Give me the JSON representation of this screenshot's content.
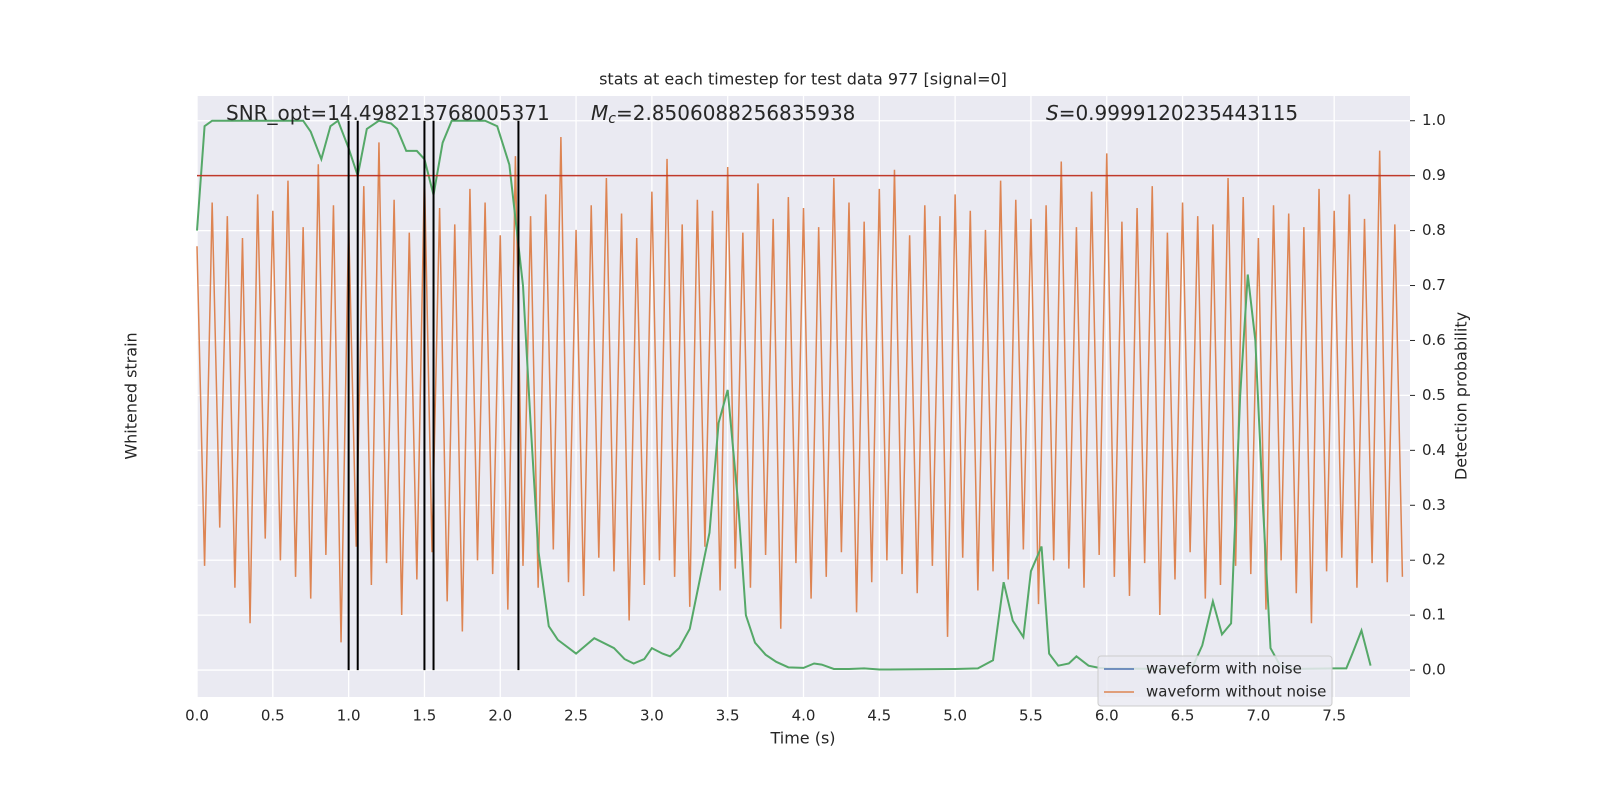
{
  "chart_data": {
    "type": "line",
    "title": "stats at each timestep for test data 977 [signal=0]",
    "xlabel": "Time (s)",
    "ylabel": "Whitened strain",
    "y2label": "Detection probability",
    "annotations": [
      {
        "parts": [
          "SNR_opt=14.498213768005371"
        ]
      },
      {
        "parts": [
          "M",
          "c",
          "=2.8506088256835938"
        ]
      },
      {
        "parts": [
          "S",
          "=0.9999120235443115"
        ]
      }
    ],
    "xlim": [
      0,
      8
    ],
    "xticks": [
      {
        "value": 0,
        "label": "0.0"
      },
      0.5,
      {
        "value": 1,
        "label": "1.0"
      },
      1.5,
      {
        "value": 2,
        "label": "2.0"
      },
      2.5,
      {
        "value": 3,
        "label": "3.0"
      },
      3.5,
      {
        "value": 4,
        "label": "4.0"
      },
      4.5,
      {
        "value": 5,
        "label": "5.0"
      },
      5.5,
      {
        "value": 6,
        "label": "6.0"
      },
      6.5,
      {
        "value": 7,
        "label": "7.0"
      },
      7.5
    ],
    "ylim": [
      -1.1,
      1.1
    ],
    "y2lim": [
      -0.049,
      1.045
    ],
    "y2ticks": [
      {
        "value": 0,
        "label": "0.0"
      },
      0.1,
      0.2,
      0.3,
      0.4,
      0.5,
      0.6,
      0.7,
      0.8,
      0.9,
      {
        "value": 1,
        "label": "1.0"
      }
    ],
    "grid": true,
    "legend": "lower right",
    "threshold": {
      "value": 0.9,
      "color": "#c0392b",
      "axis": "y2"
    },
    "vlines": {
      "x": [
        1.0,
        1.06,
        1.5,
        1.56,
        2.12
      ],
      "color": "#000000",
      "range": [
        0,
        1
      ],
      "axis": "y2"
    },
    "series": [
      {
        "name": "waveform with noise",
        "color": "#4c72b0"
      },
      {
        "name": "waveform without noise",
        "color": "#dd8452",
        "x": [
          0,
          0.05,
          0.1,
          0.15,
          0.2,
          0.25,
          0.3,
          0.35,
          0.4,
          0.45,
          0.5,
          0.55,
          0.6,
          0.65,
          0.7,
          0.75,
          0.8,
          0.85,
          0.9,
          0.95,
          1,
          1.05,
          1.1,
          1.15,
          1.2,
          1.25,
          1.3,
          1.35,
          1.4,
          1.45,
          1.5,
          1.55,
          1.6,
          1.65,
          1.7,
          1.75,
          1.8,
          1.85,
          1.9,
          1.95,
          2,
          2.05,
          2.1,
          2.15,
          2.2,
          2.25,
          2.3,
          2.35,
          2.4,
          2.45,
          2.5,
          2.55,
          2.6,
          2.65,
          2.7,
          2.75,
          2.8,
          2.85,
          2.9,
          2.95,
          3,
          3.05,
          3.1,
          3.15,
          3.2,
          3.25,
          3.3,
          3.35,
          3.4,
          3.45,
          3.5,
          3.55,
          3.6,
          3.65,
          3.7,
          3.75,
          3.8,
          3.85,
          3.9,
          3.95,
          4,
          4.05,
          4.1,
          4.15,
          4.2,
          4.25,
          4.3,
          4.35,
          4.4,
          4.45,
          4.5,
          4.55,
          4.6,
          4.65,
          4.7,
          4.75,
          4.8,
          4.85,
          4.9,
          4.95,
          5,
          5.05,
          5.1,
          5.15,
          5.2,
          5.25,
          5.3,
          5.35,
          5.4,
          5.45,
          5.5,
          5.55,
          5.6,
          5.65,
          5.7,
          5.75,
          5.8,
          5.85,
          5.9,
          5.95,
          6,
          6.05,
          6.1,
          6.15,
          6.2,
          6.25,
          6.3,
          6.35,
          6.4,
          6.45,
          6.5,
          6.55,
          6.6,
          6.65,
          6.7,
          6.75,
          6.8,
          6.85,
          6.9,
          6.95,
          7,
          7.05,
          7.1,
          7.15,
          7.2,
          7.25,
          7.3,
          7.35,
          7.4,
          7.45,
          7.5,
          7.55,
          7.6,
          7.65,
          7.7,
          7.75,
          7.8,
          7.85,
          7.9,
          7.95
        ],
        "values": [
          0.55,
          -0.62,
          0.71,
          -0.48,
          0.66,
          -0.7,
          0.58,
          -0.83,
          0.74,
          -0.52,
          0.68,
          -0.6,
          0.79,
          -0.66,
          0.62,
          -0.74,
          0.85,
          -0.58,
          0.7,
          -0.9,
          0.64,
          -0.55,
          0.77,
          -0.69,
          0.93,
          -0.61,
          0.72,
          -0.8,
          0.6,
          -0.67,
          0.82,
          -0.57,
          0.69,
          -0.75,
          0.63,
          -0.86,
          0.76,
          -0.6,
          0.71,
          -0.65,
          0.59,
          -0.78,
          0.88,
          -0.62,
          0.66,
          -0.7,
          0.74,
          -0.56,
          0.95,
          -0.68,
          0.61,
          -0.73,
          0.7,
          -0.59,
          0.8,
          -0.64,
          0.67,
          -0.82,
          0.58,
          -0.69,
          0.75,
          -0.6,
          0.87,
          -0.66,
          0.63,
          -0.77,
          0.72,
          -0.55,
          0.68,
          -0.71,
          0.84,
          -0.63,
          0.6,
          -0.7,
          0.78,
          -0.58,
          0.65,
          -0.85,
          0.73,
          -0.61,
          0.69,
          -0.74,
          0.62,
          -0.66,
          0.8,
          -0.57,
          0.71,
          -0.79,
          0.64,
          -0.68,
          0.76,
          -0.6,
          0.83,
          -0.65,
          0.59,
          -0.72,
          0.7,
          -0.62,
          0.66,
          -0.88,
          0.74,
          -0.59,
          0.68,
          -0.71,
          0.61,
          -0.64,
          0.79,
          -0.67,
          0.72,
          -0.56,
          0.65,
          -0.76,
          0.7,
          -0.6,
          0.86,
          -0.63,
          0.62,
          -0.7,
          0.75,
          -0.58,
          0.89,
          -0.66,
          0.64,
          -0.73,
          0.69,
          -0.61,
          0.77,
          -0.8,
          0.6,
          -0.67,
          0.71,
          -0.57,
          0.66,
          -0.74,
          0.63,
          -0.69,
          0.8,
          -0.62,
          0.73,
          -0.65,
          0.58,
          -0.78,
          0.7,
          -0.6,
          0.67,
          -0.72,
          0.62,
          -0.83,
          0.76,
          -0.64,
          0.68,
          -0.59,
          0.74,
          -0.7,
          0.65,
          -0.61,
          0.9,
          -0.68,
          0.63,
          -0.66
        ]
      },
      {
        "color": "#55a868",
        "axis": "y2",
        "x": [
          0,
          0.05,
          0.1,
          0.3,
          0.5,
          0.7,
          0.75,
          0.82,
          0.88,
          0.93,
          1.0,
          1.06,
          1.12,
          1.2,
          1.28,
          1.32,
          1.38,
          1.45,
          1.5,
          1.56,
          1.62,
          1.68,
          1.8,
          1.9,
          1.98,
          2.06,
          2.15,
          2.2,
          2.25,
          2.32,
          2.38,
          2.5,
          2.62,
          2.75,
          2.82,
          2.88,
          2.95,
          3.0,
          3.07,
          3.12,
          3.18,
          3.25,
          3.32,
          3.38,
          3.44,
          3.5,
          3.57,
          3.62,
          3.68,
          3.75,
          3.82,
          3.9,
          4.0,
          4.07,
          4.12,
          4.2,
          4.3,
          4.4,
          4.5,
          5.0,
          5.15,
          5.25,
          5.32,
          5.38,
          5.45,
          5.5,
          5.57,
          5.62,
          5.68,
          5.75,
          5.8,
          5.88,
          5.95,
          6.0,
          6.5,
          6.57,
          6.63,
          6.7,
          6.76,
          6.82,
          6.88,
          6.93,
          6.98,
          7.03,
          7.08,
          7.14,
          7.2,
          7.5,
          7.58,
          7.62,
          7.68,
          7.74
        ],
        "values": [
          0.8,
          0.99,
          1.0,
          1.0,
          1.0,
          1.0,
          0.98,
          0.93,
          0.99,
          1.0,
          0.95,
          0.9,
          0.985,
          1.0,
          0.995,
          0.985,
          0.945,
          0.945,
          0.93,
          0.865,
          0.96,
          1.0,
          1.0,
          1.0,
          0.99,
          0.92,
          0.7,
          0.45,
          0.22,
          0.08,
          0.055,
          0.03,
          0.058,
          0.04,
          0.02,
          0.012,
          0.02,
          0.04,
          0.03,
          0.025,
          0.04,
          0.075,
          0.17,
          0.25,
          0.45,
          0.51,
          0.3,
          0.1,
          0.05,
          0.028,
          0.015,
          0.005,
          0.004,
          0.012,
          0.01,
          0.002,
          0.002,
          0.003,
          0.001,
          0.002,
          0.003,
          0.018,
          0.16,
          0.09,
          0.06,
          0.18,
          0.225,
          0.03,
          0.008,
          0.012,
          0.025,
          0.008,
          0.004,
          0.003,
          0.002,
          0.008,
          0.045,
          0.125,
          0.065,
          0.085,
          0.5,
          0.72,
          0.6,
          0.3,
          0.04,
          0.01,
          0.002,
          0.003,
          0.003,
          0.03,
          0.072,
          0.008
        ]
      }
    ]
  }
}
